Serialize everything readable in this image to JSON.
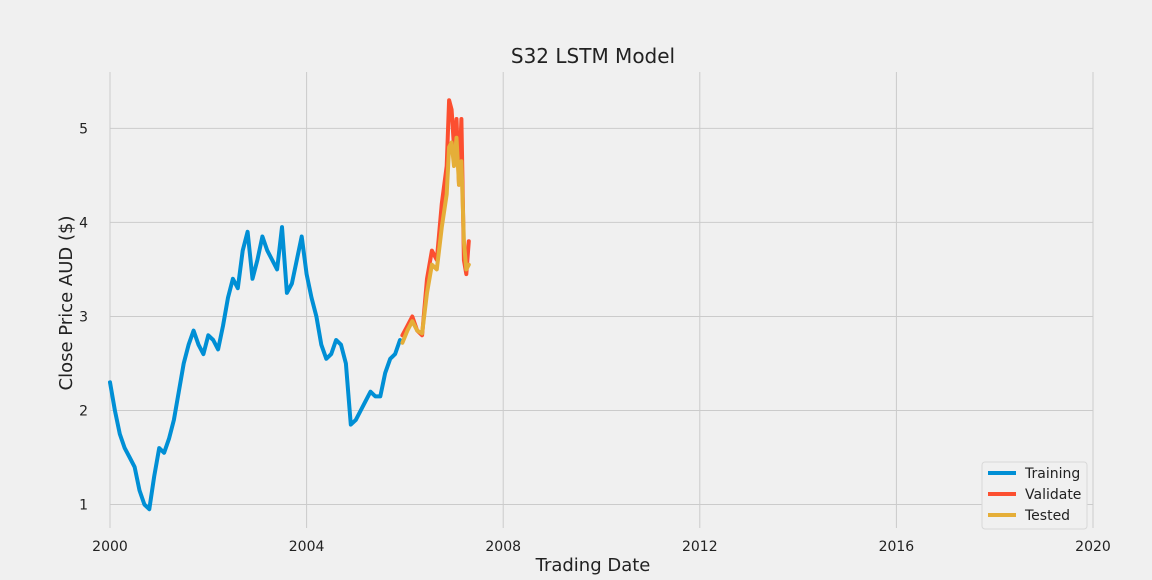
{
  "chart_data": {
    "type": "line",
    "title": "S32 LSTM Model",
    "xlabel": "Trading Date",
    "ylabel": "Close Price AUD ($)",
    "xlim": [
      2000,
      2020
    ],
    "ylim": [
      0.75,
      5.6
    ],
    "xticks": [
      2000,
      2004,
      2008,
      2012,
      2016,
      2020
    ],
    "xtick_labels": [
      "2000",
      "2004",
      "2008",
      "2012",
      "2016",
      "2020"
    ],
    "yticks": [
      1,
      2,
      3,
      4,
      5
    ],
    "ytick_labels": [
      "1",
      "2",
      "3",
      "4",
      "5"
    ],
    "grid": true,
    "legend_position": "bottom-right",
    "series": [
      {
        "name": "Training",
        "color": "#008fd5",
        "x": [
          2000.0,
          2000.1,
          2000.2,
          2000.3,
          2000.4,
          2000.5,
          2000.6,
          2000.7,
          2000.8,
          2000.9,
          2001.0,
          2001.1,
          2001.2,
          2001.3,
          2001.4,
          2001.5,
          2001.6,
          2001.7,
          2001.8,
          2001.9,
          2002.0,
          2002.1,
          2002.2,
          2002.3,
          2002.4,
          2002.5,
          2002.6,
          2002.7,
          2002.8,
          2002.9,
          2003.0,
          2003.1,
          2003.2,
          2003.3,
          2003.4,
          2003.5,
          2003.6,
          2003.7,
          2003.8,
          2003.9,
          2004.0,
          2004.1,
          2004.2,
          2004.3,
          2004.4,
          2004.5,
          2004.6,
          2004.7,
          2004.8,
          2004.9,
          2005.0,
          2005.1,
          2005.2,
          2005.3,
          2005.4,
          2005.5,
          2005.6,
          2005.7,
          2005.8,
          2005.9
        ],
        "y": [
          2.3,
          2.0,
          1.75,
          1.6,
          1.5,
          1.4,
          1.15,
          1.0,
          0.95,
          1.3,
          1.6,
          1.55,
          1.7,
          1.9,
          2.2,
          2.5,
          2.7,
          2.85,
          2.7,
          2.6,
          2.8,
          2.75,
          2.65,
          2.9,
          3.2,
          3.4,
          3.3,
          3.7,
          3.9,
          3.4,
          3.6,
          3.85,
          3.7,
          3.6,
          3.5,
          3.95,
          3.25,
          3.35,
          3.6,
          3.85,
          3.45,
          3.2,
          3.0,
          2.7,
          2.55,
          2.6,
          2.75,
          2.7,
          2.5,
          1.85,
          1.9,
          2.0,
          2.1,
          2.2,
          2.15,
          2.15,
          2.4,
          2.55,
          2.6,
          2.75
        ]
      },
      {
        "name": "Validate",
        "color": "#fc4f30",
        "x": [
          2005.95,
          2006.05,
          2006.15,
          2006.25,
          2006.35,
          2006.45,
          2006.55,
          2006.65,
          2006.75,
          2006.85,
          2006.9,
          2006.95,
          2007.0,
          2007.05,
          2007.1,
          2007.15,
          2007.2,
          2007.25,
          2007.3
        ],
        "y": [
          2.8,
          2.9,
          3.0,
          2.85,
          2.8,
          3.4,
          3.7,
          3.6,
          4.2,
          4.6,
          5.3,
          5.2,
          4.8,
          5.1,
          4.4,
          5.1,
          3.6,
          3.45,
          3.8
        ]
      },
      {
        "name": "Tested",
        "color": "#e5ae38",
        "x": [
          2005.95,
          2006.05,
          2006.15,
          2006.25,
          2006.35,
          2006.45,
          2006.55,
          2006.65,
          2006.75,
          2006.85,
          2006.9,
          2006.95,
          2007.0,
          2007.05,
          2007.1,
          2007.15,
          2007.2,
          2007.25,
          2007.3
        ],
        "y": [
          2.72,
          2.85,
          2.95,
          2.85,
          2.82,
          3.25,
          3.55,
          3.5,
          3.95,
          4.3,
          4.8,
          4.85,
          4.6,
          4.9,
          4.4,
          4.65,
          3.8,
          3.5,
          3.55
        ]
      }
    ]
  }
}
